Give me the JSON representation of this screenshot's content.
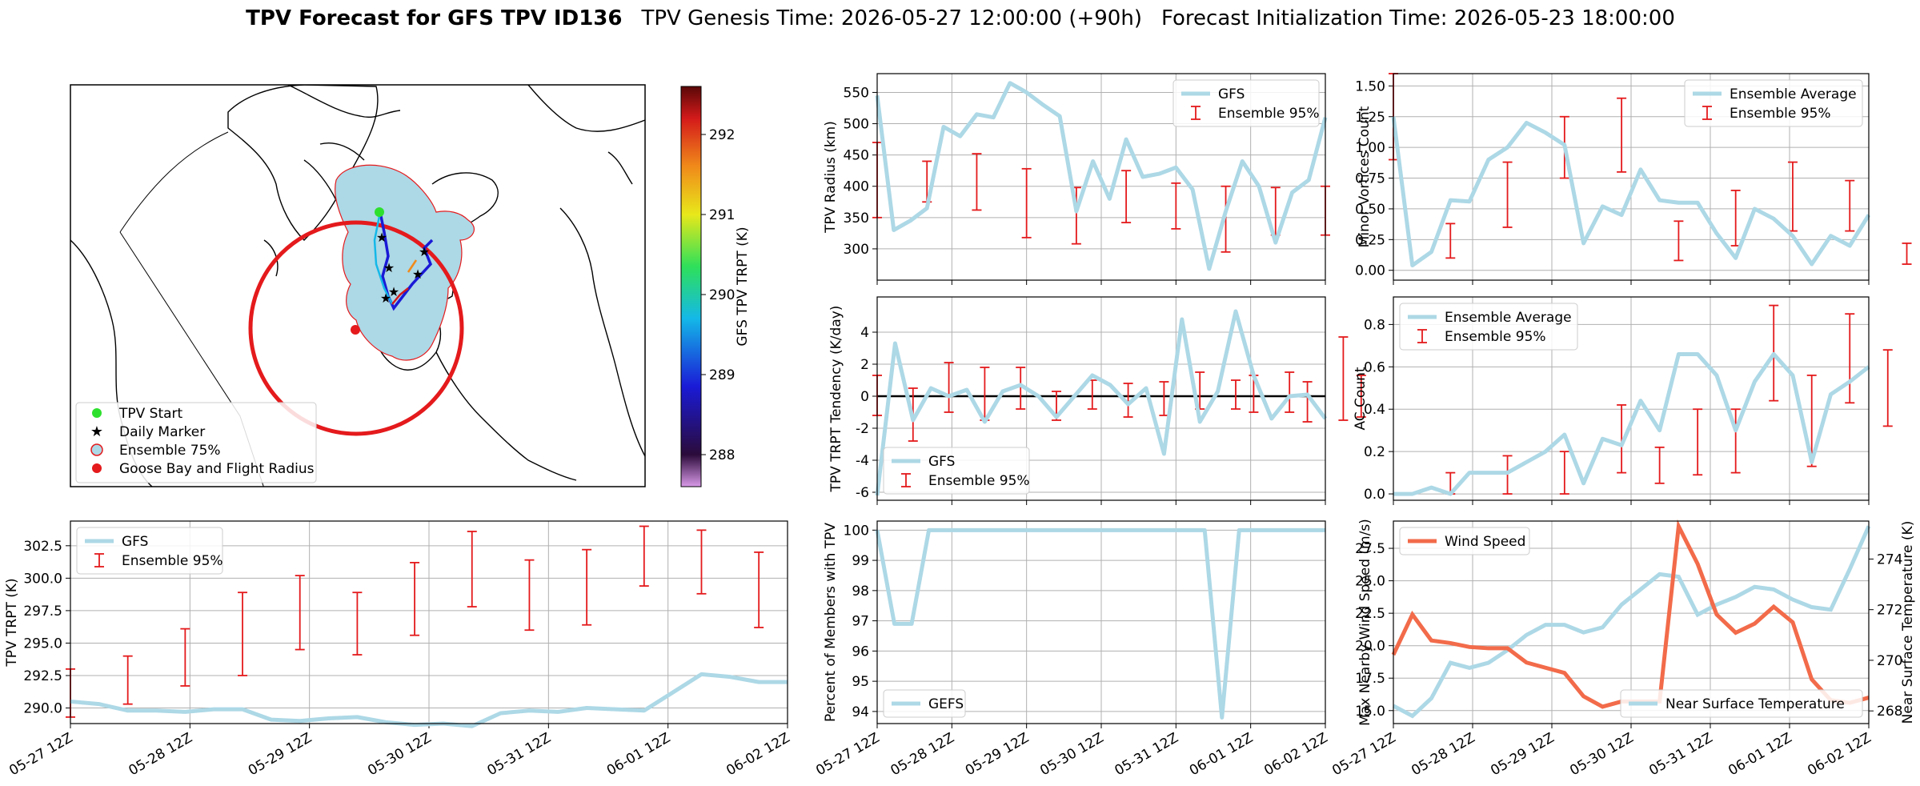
{
  "header": {
    "title_bold": "TPV Forecast for GFS TPV ID136",
    "genesis": "TPV Genesis Time: 2026-05-27 12:00:00 (+90h)",
    "init": "Forecast Initialization Time: 2026-05-23 18:00:00"
  },
  "colors": {
    "mean_line": "#add8e6",
    "error_bar": "#e41a1c",
    "wind": "#f26b4a",
    "temp_axis": "#3a6fd8",
    "map_shade": "#add8e6"
  },
  "time_ticks": [
    "05-27 12Z",
    "05-28 12Z",
    "05-29 12Z",
    "05-30 12Z",
    "05-31 12Z",
    "06-01 12Z",
    "06-02 12Z"
  ],
  "map": {
    "colorbar_label": "GFS TPV TRPT (K)",
    "colorbar_ticks": [
      "288",
      "289",
      "290",
      "291",
      "292"
    ],
    "colorbar_range": [
      287.6,
      292.6
    ],
    "legend": [
      {
        "label": "TPV Start",
        "icon": "green-dot-icon"
      },
      {
        "label": "Daily Marker",
        "icon": "magenta-star-icon"
      },
      {
        "label": "Ensemble 75%",
        "icon": "lightblue-circle-icon"
      },
      {
        "label": "Goose Bay and Flight Radius",
        "icon": "red-dot-icon"
      }
    ]
  },
  "chart_data": [
    {
      "id": "radius",
      "type": "line",
      "ylabel": "TPV Radius (km)",
      "ylim": [
        250,
        580
      ],
      "yticks": [
        300,
        350,
        400,
        450,
        500,
        550
      ],
      "legend": [
        "GFS",
        "Ensemble 95%"
      ],
      "legend_loc": "upper right",
      "line": [
        545,
        330,
        345,
        365,
        495,
        480,
        515,
        510,
        565,
        550,
        530,
        512,
        360,
        440,
        380,
        475,
        415,
        420,
        430,
        395,
        268,
        360,
        440,
        400,
        310,
        390,
        410,
        510
      ],
      "err_x": [
        0,
        3,
        6,
        9,
        12,
        15,
        18,
        21,
        24,
        27
      ],
      "err_lo": [
        350,
        375,
        362,
        318,
        308,
        342,
        332,
        295,
        322,
        322
      ],
      "err_hi": [
        470,
        440,
        452,
        428,
        398,
        425,
        405,
        400,
        398,
        400
      ]
    },
    {
      "id": "minor_vortices",
      "type": "line",
      "ylabel": "Minor Vortices Count",
      "ylim": [
        -0.08,
        1.6
      ],
      "yticks": [
        0.0,
        0.25,
        0.5,
        0.75,
        1.0,
        1.25,
        1.5
      ],
      "legend": [
        "Ensemble Average",
        "Ensemble 95%"
      ],
      "legend_loc": "upper right",
      "line": [
        1.25,
        0.04,
        0.15,
        0.57,
        0.56,
        0.9,
        1.0,
        1.2,
        1.12,
        1.02,
        0.22,
        0.52,
        0.45,
        0.82,
        0.57,
        0.55,
        0.55,
        0.3,
        0.1,
        0.5,
        0.42,
        0.28,
        0.05,
        0.28,
        0.2,
        0.45
      ],
      "err_x": [
        0,
        3,
        6,
        9,
        12,
        15,
        18,
        21,
        24,
        27
      ],
      "err_lo": [
        0.9,
        0.1,
        0.35,
        0.75,
        0.8,
        0.08,
        0.2,
        0.32,
        0.32,
        0.05
      ],
      "err_hi": [
        1.6,
        0.38,
        0.88,
        1.25,
        1.4,
        0.4,
        0.65,
        0.88,
        0.73,
        0.22
      ]
    },
    {
      "id": "trpt_tendency",
      "type": "line",
      "ylabel": "TPV TRPT Tendency (K/day)",
      "ylim": [
        -6.5,
        6.2
      ],
      "yticks": [
        -6,
        -4,
        -2,
        0,
        2,
        4
      ],
      "legend": [
        "GFS",
        "Ensemble 95%"
      ],
      "legend_loc": "lower left",
      "zero_line": true,
      "line": [
        -6.2,
        3.3,
        -1.5,
        0.5,
        0.0,
        0.4,
        -1.6,
        0.3,
        0.7,
        0.0,
        -1.3,
        0.0,
        1.3,
        0.7,
        -0.5,
        0.5,
        -3.6,
        4.8,
        -1.6,
        0.3,
        5.3,
        1.3,
        -1.4,
        0.0,
        0.1,
        -1.4
      ],
      "err_x": [
        0,
        2,
        4,
        6,
        8,
        10,
        12,
        14,
        16,
        18,
        20,
        21,
        23,
        24,
        26,
        27
      ],
      "err_lo": [
        -1.2,
        -2.8,
        -1.0,
        -1.5,
        -0.8,
        -1.5,
        -0.8,
        -1.3,
        -1.2,
        -0.8,
        -0.8,
        -1.0,
        -1.0,
        -1.6,
        -1.5,
        -1.3
      ],
      "err_hi": [
        1.3,
        0.5,
        2.1,
        1.8,
        1.8,
        0.3,
        1.0,
        0.8,
        0.9,
        1.5,
        1.0,
        1.3,
        1.5,
        0.9,
        3.7,
        1.3
      ]
    },
    {
      "id": "ac_count",
      "type": "line",
      "ylabel": "AC Count",
      "ylim": [
        -0.03,
        0.93
      ],
      "yticks": [
        0.0,
        0.2,
        0.4,
        0.6,
        0.8
      ],
      "legend": [
        "Ensemble Average",
        "Ensemble 95%"
      ],
      "legend_loc": "upper left",
      "line": [
        0.0,
        0.0,
        0.03,
        0.0,
        0.1,
        0.1,
        0.1,
        0.15,
        0.2,
        0.28,
        0.05,
        0.26,
        0.23,
        0.44,
        0.3,
        0.66,
        0.66,
        0.56,
        0.3,
        0.53,
        0.66,
        0.56,
        0.15,
        0.47,
        0.53,
        0.6
      ],
      "err_x": [
        3,
        6,
        9,
        12,
        14,
        16,
        18,
        20,
        22,
        24,
        26
      ],
      "err_lo": [
        0.0,
        0.0,
        0.0,
        0.1,
        0.05,
        0.09,
        0.1,
        0.44,
        0.13,
        0.43,
        0.32
      ],
      "err_hi": [
        0.1,
        0.18,
        0.2,
        0.42,
        0.22,
        0.4,
        0.4,
        0.89,
        0.56,
        0.85,
        0.68
      ]
    },
    {
      "id": "trpt",
      "type": "line",
      "ylabel": "TPV TRPT (K)",
      "ylim": [
        288.8,
        304.4
      ],
      "yticks": [
        290.0,
        292.5,
        295.0,
        297.5,
        300.0,
        302.5
      ],
      "legend": [
        "GFS",
        "Ensemble 95%"
      ],
      "legend_loc": "upper left",
      "line": [
        290.5,
        290.3,
        289.8,
        289.8,
        289.7,
        289.9,
        289.9,
        289.1,
        289.0,
        289.2,
        289.3,
        288.9,
        288.7,
        288.8,
        288.6,
        289.6,
        289.8,
        289.7,
        290.0,
        289.9,
        289.8,
        291.2,
        292.6,
        292.4,
        292.0,
        292.0
      ],
      "err_x": [
        0,
        2,
        4,
        6,
        8,
        10,
        12,
        14,
        16,
        18,
        20,
        22,
        24
      ],
      "err_lo": [
        289.3,
        290.3,
        291.7,
        292.5,
        294.5,
        294.1,
        295.6,
        297.8,
        296.0,
        296.4,
        299.4,
        298.8,
        296.2
      ],
      "err_hi": [
        293.0,
        294.0,
        296.1,
        298.9,
        300.2,
        298.9,
        301.2,
        303.6,
        301.4,
        302.2,
        304.0,
        303.7,
        302.0
      ]
    },
    {
      "id": "percent_members",
      "type": "line",
      "ylabel": "Percent of Members with TPV",
      "ylim": [
        93.6,
        100.3
      ],
      "yticks": [
        94,
        95,
        96,
        97,
        98,
        99,
        100
      ],
      "legend": [
        "GEFS"
      ],
      "legend_loc": "lower left",
      "line": [
        100,
        96.9,
        96.9,
        100,
        100,
        100,
        100,
        100,
        100,
        100,
        100,
        100,
        100,
        100,
        100,
        100,
        100,
        100,
        100,
        100,
        93.8,
        100,
        100,
        100,
        100,
        100,
        100
      ]
    },
    {
      "id": "wind_temp",
      "type": "line",
      "ylabel": "Max Nearby Wind Speed (m/s)",
      "y2label": "Near Surface Temperature (K)",
      "ylim": [
        14.0,
        29.6
      ],
      "yticks": [
        15.0,
        17.5,
        20.0,
        22.5,
        25.0,
        27.5
      ],
      "y2lim": [
        267.5,
        275.5
      ],
      "y2ticks": [
        268,
        270,
        272,
        274
      ],
      "legend": [
        "Wind Speed"
      ],
      "legend2": [
        "Near Surface Temperature"
      ],
      "wind": [
        19.3,
        22.4,
        20.4,
        20.2,
        19.9,
        19.8,
        19.8,
        18.7,
        18.3,
        17.9,
        16.1,
        15.3,
        15.7,
        15.7,
        15.7,
        29.2,
        26.3,
        22.4,
        21.0,
        21.7,
        23.0,
        21.8,
        17.4,
        15.8,
        15.6,
        16.0
      ],
      "temp": [
        268.2,
        267.8,
        268.5,
        269.9,
        269.7,
        269.9,
        270.4,
        271.0,
        271.4,
        271.4,
        271.1,
        271.3,
        272.2,
        272.8,
        273.4,
        273.3,
        271.8,
        272.2,
        272.5,
        272.9,
        272.8,
        272.4,
        272.1,
        272.0,
        273.6,
        275.3
      ]
    }
  ]
}
